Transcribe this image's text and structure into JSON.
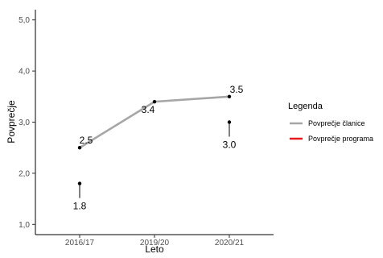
{
  "chart_data": {
    "type": "line",
    "categories": [
      "2016/17",
      "2019/20",
      "2020/21"
    ],
    "xlabel": "Leto",
    "ylabel": "Povprečje",
    "ylim": [
      0.8,
      5.2
    ],
    "yticks": [
      "1,0",
      "2,0",
      "3,0",
      "4,0",
      "5,0"
    ],
    "ytick_values": [
      1,
      2,
      3,
      4,
      5
    ],
    "grid": false,
    "legend": {
      "title": "Legenda",
      "placement": "right",
      "entries": [
        {
          "name": "Povprečje članice",
          "color": "#a6a6a6"
        },
        {
          "name": "Povprečje programa",
          "color": "#e8191e"
        }
      ]
    },
    "series": [
      {
        "name": "Povprečje članice",
        "color": "#a6a6a6",
        "values": [
          2.5,
          3.4,
          3.5
        ],
        "labels": [
          "2.5",
          "3.4",
          "3.5"
        ]
      },
      {
        "name": "Povprečje programa",
        "color": "#e8191e",
        "values": [
          1.8,
          null,
          3.0
        ],
        "labels": [
          "1.8",
          "",
          "3.0"
        ]
      }
    ]
  }
}
